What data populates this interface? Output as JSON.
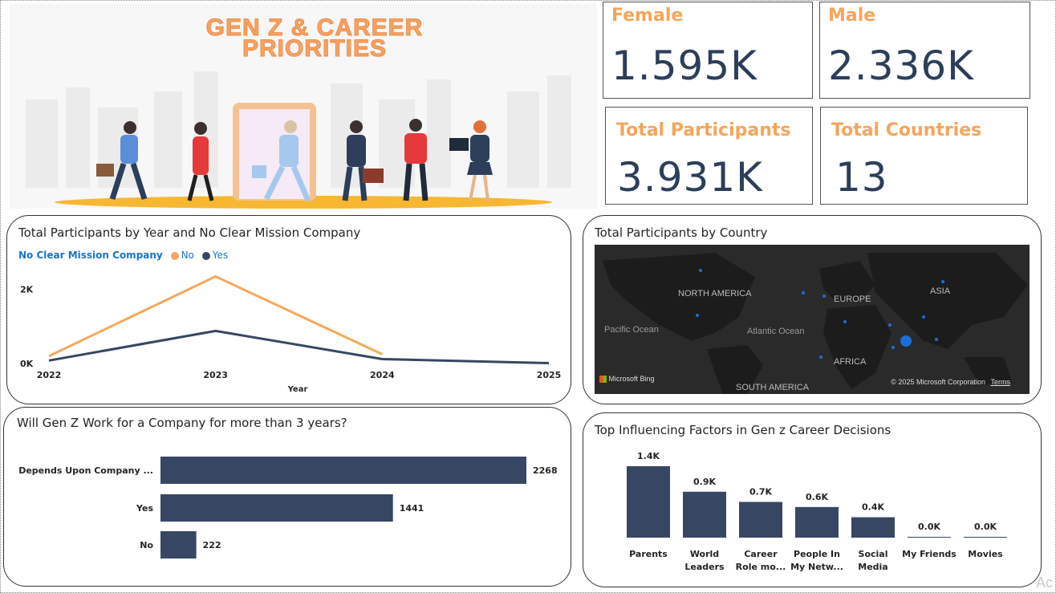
{
  "hero": {
    "title_line1": "GEN Z & CAREER",
    "title_line2": "PRIORITIES"
  },
  "kpis": [
    {
      "label": "Female",
      "value": "1.595K"
    },
    {
      "label": "Male",
      "value": "2.336K"
    },
    {
      "label": "Total Participants",
      "value": "3.931K"
    },
    {
      "label": "Total Countries",
      "value": "13"
    }
  ],
  "colors": {
    "accent_orange": "#f5a55a",
    "navy": "#374763",
    "kpi_value": "#2c3e5a",
    "legend_blue": "#1a73c8"
  },
  "line_panel": {
    "title": "Total Participants by Year and No Clear Mission Company",
    "legend_title": "No Clear Mission Company",
    "legend_items": [
      "No",
      "Yes"
    ]
  },
  "map_panel": {
    "title": "Total Participants by Country",
    "labels": {
      "north_america": "NORTH AMERICA",
      "europe": "EUROPE",
      "asia": "ASIA",
      "africa": "AFRICA",
      "south_america": "SOUTH AMERICA",
      "pacific": "Pacific Ocean",
      "atlantic": "Atlantic Ocean",
      "bing": "Microsoft Bing",
      "copyright": "© 2025 Microsoft Corporation",
      "terms": "Terms"
    }
  },
  "bar_panel": {
    "title": "Will Gen Z Work for a Company for more than 3 years?"
  },
  "column_panel": {
    "title": "Top Influencing Factors in Gen z Career Decisions"
  },
  "watermark": "Ac",
  "chart_data": [
    {
      "type": "line",
      "title": "Total Participants by Year and No Clear Mission Company",
      "xlabel": "Year",
      "x": [
        "2022",
        "2023",
        "2024",
        "2025"
      ],
      "y_ticks": [
        "0K",
        "2K"
      ],
      "ylim": [
        0,
        2600
      ],
      "legend_position": "top-left",
      "series": [
        {
          "name": "No",
          "color": "#f4a95c",
          "values": [
            200,
            2350,
            250,
            null
          ]
        },
        {
          "name": "Yes",
          "color": "#374763",
          "values": [
            80,
            880,
            120,
            10
          ]
        }
      ]
    },
    {
      "type": "bar",
      "orientation": "horizontal",
      "title": "Will Gen Z Work for a Company for more than 3 years?",
      "categories": [
        "Depends Upon Company ...",
        "Yes",
        "No"
      ],
      "values": [
        2268,
        1441,
        222
      ],
      "data_labels": [
        "2268",
        "1441",
        "222"
      ],
      "color": "#374763"
    },
    {
      "type": "bar",
      "title": "Top Influencing Factors in Gen z Career Decisions",
      "categories": [
        [
          "Parents"
        ],
        [
          "World",
          "Leaders"
        ],
        [
          "Career",
          "Role mo..."
        ],
        [
          "People In",
          "My Netw..."
        ],
        [
          "Social",
          "Media"
        ],
        [
          "My Friends"
        ],
        [
          "Movies"
        ]
      ],
      "values": [
        1.4,
        0.9,
        0.7,
        0.6,
        0.4,
        0.0,
        0.0
      ],
      "data_labels": [
        "1.4K",
        "0.9K",
        "0.7K",
        "0.6K",
        "0.4K",
        "0.0K",
        "0.0K"
      ],
      "color": "#374763"
    }
  ]
}
